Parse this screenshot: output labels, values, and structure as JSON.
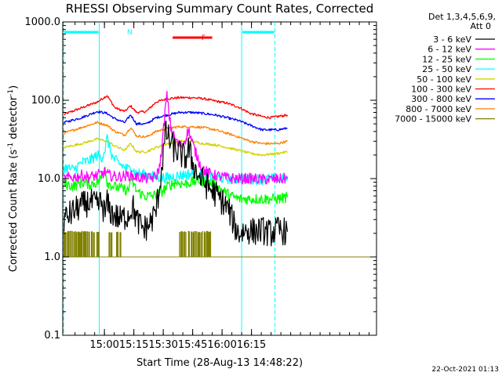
{
  "chart_data": {
    "type": "line",
    "title": "RHESSI Observing Summary Count Rates, Corrected",
    "xlabel": "Start Time (28-Aug-13 14:48:22)",
    "ylabel_main": "Corrected Count Rate (s",
    "ylabel_sup": "-1",
    "ylabel_mid": " detector",
    "ylabel_sup2": "-1",
    "ylabel_end": ")",
    "y_scale": "log",
    "ylim": [
      0.1,
      1000
    ],
    "xlim_min": [
      -9.63,
      150.4
    ],
    "yticks": [
      {
        "v": 1000,
        "label": "1000.0"
      },
      {
        "v": 100,
        "label": "100.0"
      },
      {
        "v": 10,
        "label": "10.0"
      },
      {
        "v": 1,
        "label": "1.0"
      },
      {
        "v": 0.1,
        "label": "0.1"
      }
    ],
    "xticks": [
      {
        "t": 11.63,
        "label": "15:00"
      },
      {
        "t": 26.63,
        "label": "15:15"
      },
      {
        "t": 41.63,
        "label": "15:30"
      },
      {
        "t": 56.63,
        "label": "15:45"
      },
      {
        "t": 71.63,
        "label": "16:00"
      },
      {
        "t": 86.63,
        "label": "16:15"
      }
    ],
    "legend": {
      "position": "top-right",
      "header1": "Det 1,3,4,5,6,9,",
      "header2": "Att 0",
      "entries": [
        {
          "label": "3 - 6 keV",
          "color": "#000000"
        },
        {
          "label": "6 - 12 keV",
          "color": "#ff00ff"
        },
        {
          "label": "12 - 25 keV",
          "color": "#00ff00"
        },
        {
          "label": "25 - 50 keV",
          "color": "#00ffff"
        },
        {
          "label": "50 - 100 keV",
          "color": "#d2d200"
        },
        {
          "label": "100 - 300 keV",
          "color": "#ff0000"
        },
        {
          "label": "300 - 800 keV",
          "color": "#0000ff"
        },
        {
          "label": "800 - 7000 keV",
          "color": "#ff8000"
        },
        {
          "label": "7000 - 15000 keV",
          "color": "#808000"
        }
      ]
    },
    "series": [
      {
        "name": "100 - 300 keV",
        "color": "#ff0000",
        "points": [
          [
            -9,
            66
          ],
          [
            0,
            80
          ],
          [
            8,
            95
          ],
          [
            13,
            115
          ],
          [
            17,
            80
          ],
          [
            22,
            72
          ],
          [
            25,
            85
          ],
          [
            28,
            70
          ],
          [
            33,
            72
          ],
          [
            38,
            95
          ],
          [
            44,
            105
          ],
          [
            50,
            108
          ],
          [
            56,
            108
          ],
          [
            62,
            105
          ],
          [
            68,
            98
          ],
          [
            74,
            92
          ],
          [
            80,
            82
          ],
          [
            86,
            68
          ],
          [
            92,
            62
          ],
          [
            96,
            60
          ],
          [
            100,
            62
          ],
          [
            105,
            65
          ]
        ]
      },
      {
        "name": "300 - 800 keV",
        "color": "#0000ff",
        "points": [
          [
            -9,
            52
          ],
          [
            0,
            60
          ],
          [
            8,
            72
          ],
          [
            13,
            68
          ],
          [
            17,
            58
          ],
          [
            22,
            52
          ],
          [
            25,
            65
          ],
          [
            28,
            50
          ],
          [
            33,
            50
          ],
          [
            38,
            60
          ],
          [
            44,
            65
          ],
          [
            50,
            70
          ],
          [
            56,
            70
          ],
          [
            62,
            68
          ],
          [
            68,
            65
          ],
          [
            74,
            60
          ],
          [
            80,
            55
          ],
          [
            86,
            48
          ],
          [
            92,
            42
          ],
          [
            100,
            42
          ],
          [
            105,
            44
          ]
        ]
      },
      {
        "name": "800 - 7000 keV",
        "color": "#ff8000",
        "points": [
          [
            -9,
            38
          ],
          [
            0,
            45
          ],
          [
            8,
            52
          ],
          [
            13,
            48
          ],
          [
            17,
            40
          ],
          [
            22,
            36
          ],
          [
            25,
            45
          ],
          [
            28,
            35
          ],
          [
            33,
            34
          ],
          [
            38,
            40
          ],
          [
            44,
            44
          ],
          [
            50,
            46
          ],
          [
            56,
            46
          ],
          [
            62,
            45
          ],
          [
            68,
            42
          ],
          [
            74,
            38
          ],
          [
            80,
            34
          ],
          [
            86,
            30
          ],
          [
            92,
            28
          ],
          [
            100,
            28
          ],
          [
            105,
            30
          ]
        ]
      },
      {
        "name": "50 - 100 keV",
        "color": "#d2d200",
        "points": [
          [
            -9,
            25
          ],
          [
            0,
            28
          ],
          [
            8,
            32
          ],
          [
            13,
            30
          ],
          [
            17,
            26
          ],
          [
            22,
            23
          ],
          [
            25,
            28
          ],
          [
            28,
            22
          ],
          [
            33,
            22
          ],
          [
            38,
            25
          ],
          [
            44,
            28
          ],
          [
            50,
            30
          ],
          [
            56,
            30
          ],
          [
            62,
            28
          ],
          [
            68,
            27
          ],
          [
            74,
            25
          ],
          [
            80,
            23
          ],
          [
            86,
            21
          ],
          [
            92,
            20
          ],
          [
            100,
            21
          ],
          [
            105,
            22
          ]
        ]
      },
      {
        "name": "25 - 50 keV",
        "color": "#00ffff",
        "points": [
          [
            -9,
            14
          ],
          [
            -4,
            13
          ],
          [
            0,
            16
          ],
          [
            4,
            17
          ],
          [
            8,
            20
          ],
          [
            10,
            18
          ],
          [
            12,
            24
          ],
          [
            13,
            33
          ],
          [
            14,
            26
          ],
          [
            16,
            18
          ],
          [
            20,
            15
          ],
          [
            24,
            13
          ],
          [
            25,
            15
          ],
          [
            27,
            12
          ],
          [
            30,
            11.5
          ],
          [
            34,
            11
          ],
          [
            38,
            10.5
          ],
          [
            44,
            10.2
          ],
          [
            50,
            11
          ],
          [
            56,
            11.5
          ],
          [
            62,
            11
          ],
          [
            66,
            10.5
          ],
          [
            70,
            10.2
          ],
          [
            76,
            10
          ],
          [
            80,
            10
          ],
          [
            86,
            10
          ],
          [
            92,
            9.8
          ],
          [
            100,
            10
          ],
          [
            105,
            10.2
          ]
        ]
      },
      {
        "name": "12 - 25 keV",
        "color": "#00ff00",
        "points": [
          [
            -9,
            8.5
          ],
          [
            -4,
            8
          ],
          [
            0,
            9
          ],
          [
            4,
            8.5
          ],
          [
            8,
            9
          ],
          [
            10,
            10
          ],
          [
            12,
            14
          ],
          [
            13,
            9
          ],
          [
            16,
            8
          ],
          [
            20,
            7.5
          ],
          [
            24,
            7
          ],
          [
            25,
            11
          ],
          [
            26,
            9
          ],
          [
            28,
            7
          ],
          [
            32,
            6
          ],
          [
            36,
            6
          ],
          [
            40,
            6.5
          ],
          [
            44,
            8
          ],
          [
            48,
            9
          ],
          [
            52,
            8.5
          ],
          [
            56,
            9
          ],
          [
            60,
            9.5
          ],
          [
            64,
            9
          ],
          [
            68,
            8.5
          ],
          [
            72,
            7
          ],
          [
            76,
            6
          ],
          [
            80,
            5.5
          ],
          [
            86,
            5.5
          ],
          [
            92,
            5.5
          ],
          [
            100,
            5.5
          ],
          [
            105,
            5.8
          ]
        ]
      },
      {
        "name": "6 - 12 keV",
        "color": "#ff00ff",
        "points": [
          [
            -9,
            10
          ],
          [
            -4,
            10.5
          ],
          [
            0,
            11
          ],
          [
            4,
            10.5
          ],
          [
            8,
            11
          ],
          [
            12,
            12
          ],
          [
            14,
            11
          ],
          [
            18,
            10.5
          ],
          [
            24,
            11
          ],
          [
            28,
            10.5
          ],
          [
            34,
            10
          ],
          [
            38,
            10.5
          ],
          [
            40,
            15
          ],
          [
            41.5,
            35
          ],
          [
            42.5,
            70
          ],
          [
            43.5,
            115
          ],
          [
            44.5,
            70
          ],
          [
            45.5,
            45
          ],
          [
            47,
            35
          ],
          [
            49,
            28
          ],
          [
            51,
            26
          ],
          [
            53,
            32
          ],
          [
            54.5,
            42
          ],
          [
            55.5,
            35
          ],
          [
            57,
            26
          ],
          [
            59,
            19
          ],
          [
            61,
            14
          ],
          [
            64,
            12
          ],
          [
            68,
            11
          ],
          [
            72,
            10.5
          ],
          [
            76,
            10
          ],
          [
            80,
            10
          ],
          [
            86,
            10
          ],
          [
            92,
            9.8
          ],
          [
            100,
            9.8
          ],
          [
            105,
            10
          ]
        ]
      },
      {
        "name": "3 - 6 keV",
        "color": "#000000",
        "points": [
          [
            -9,
            3
          ],
          [
            -6,
            3.5
          ],
          [
            -3,
            4
          ],
          [
            0,
            4.5
          ],
          [
            4,
            5
          ],
          [
            8,
            4.5
          ],
          [
            10,
            5
          ],
          [
            12,
            3.5
          ],
          [
            13,
            5
          ],
          [
            14,
            4
          ],
          [
            16,
            3.5
          ],
          [
            20,
            3
          ],
          [
            24,
            3.5
          ],
          [
            26,
            4.5
          ],
          [
            28,
            3
          ],
          [
            30,
            2.5
          ],
          [
            32,
            2.3
          ],
          [
            34,
            2.5
          ],
          [
            36,
            3
          ],
          [
            38,
            4
          ],
          [
            40,
            9
          ],
          [
            42,
            25
          ],
          [
            43,
            40
          ],
          [
            45,
            30
          ],
          [
            47,
            24
          ],
          [
            49,
            22
          ],
          [
            51,
            20
          ],
          [
            53,
            18
          ],
          [
            54.5,
            24
          ],
          [
            56,
            18
          ],
          [
            58,
            13
          ],
          [
            60,
            10.5
          ],
          [
            64,
            8
          ],
          [
            68,
            6.5
          ],
          [
            72,
            5
          ],
          [
            75,
            4
          ],
          [
            78,
            2.5
          ],
          [
            80,
            2
          ],
          [
            84,
            2.2
          ],
          [
            88,
            2.1
          ],
          [
            92,
            2.2
          ],
          [
            96,
            2
          ],
          [
            100,
            2.2
          ],
          [
            105,
            2.1
          ]
        ]
      },
      {
        "name": "7000 - 15000 keV",
        "color": "#808000",
        "style": "noisy-flat",
        "baseline": 1.0,
        "ranges": [
          [
            -9,
            9
          ],
          [
            14,
            21
          ],
          [
            50,
            66
          ]
        ]
      }
    ],
    "annotations": {
      "night_label": "N",
      "flare_label": "F",
      "night_intervals": [
        [
          -9.63,
          9.4
        ],
        [
          81.2,
          99.0
        ]
      ],
      "flare_interval": [
        46.4,
        66.6
      ]
    },
    "footer_date": "22-Oct-2021 01:13"
  }
}
